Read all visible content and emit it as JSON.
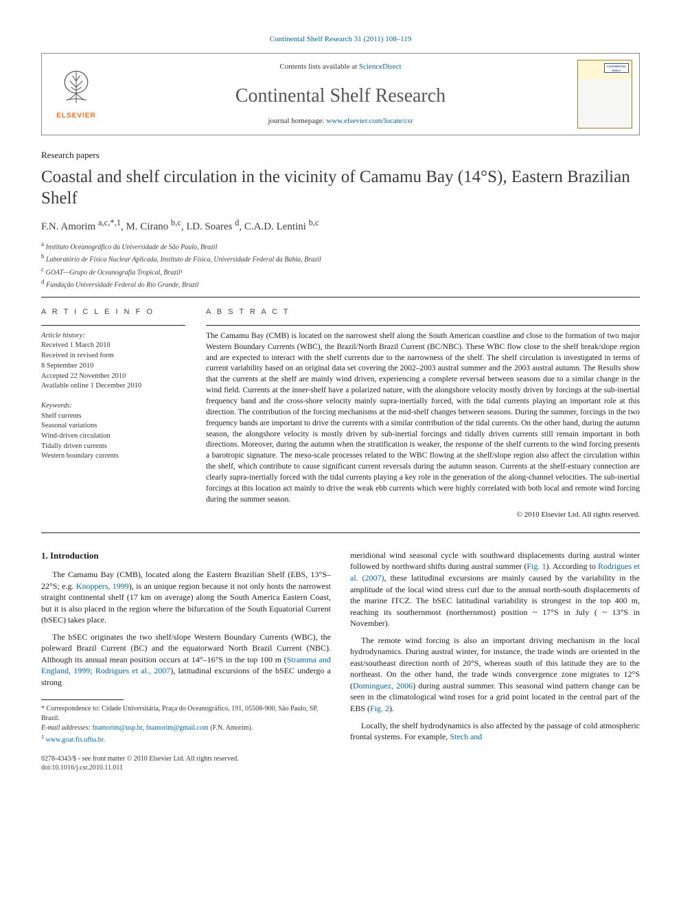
{
  "citation": "Continental Shelf Research 31 (2011) 108–119",
  "header": {
    "elsevier_label": "ELSEVIER",
    "sciencedirect_prefix": "Contents lists available at ",
    "sciencedirect_link": "ScienceDirect",
    "journal_name": "Continental Shelf Research",
    "homepage_prefix": "journal homepage: ",
    "homepage_link": "www.elsevier.com/locate/csr",
    "cover_badge": "CONTINENTAL SHELF RESEARCH"
  },
  "section_label": "Research papers",
  "title": "Coastal and shelf circulation in the vicinity of Camamu Bay (14°S), Eastern Brazilian Shelf",
  "authors_html": "F.N. Amorim <sup>a,c,*,1</sup>, M. Cirano <sup>b,c</sup>, I.D. Soares <sup>d</sup>, C.A.D. Lentini <sup>b,c</sup>",
  "affiliations": [
    {
      "sup": "a",
      "text": "Instituto Oceanográfico da Universidade de São Paulo, Brazil"
    },
    {
      "sup": "b",
      "text": "Laboratório de Física Nuclear Aplicada, Instituto de Física, Universidade Federal da Bahia, Brazil"
    },
    {
      "sup": "c",
      "text": "GOAT—Grupo de Oceanografia Tropical, Brazil¹"
    },
    {
      "sup": "d",
      "text": "Fundação Universidade Federal do Rio Grande, Brazil"
    }
  ],
  "article_info": {
    "heading": "A R T I C L E   I N F O",
    "history_label": "Article history:",
    "received": "Received 1 March 2010",
    "revised1": "Received in revised form",
    "revised2": "8 September 2010",
    "accepted": "Accepted 22 November 2010",
    "online": "Available online 1 December 2010",
    "keywords_label": "Keywords:",
    "keywords": [
      "Shelf currents",
      "Seasonal variations",
      "Wind-driven circulation",
      "Tidally driven currents",
      "Western boundary currents"
    ]
  },
  "abstract": {
    "heading": "A B S T R A C T",
    "text": "The Camamu Bay (CMB) is located on the narrowest shelf along the South American coastline and close to the formation of two major Western Boundary Currents (WBC), the Brazil/North Brazil Current (BC/NBC). These WBC flow close to the shelf break/slope region and are expected to interact with the shelf currents due to the narrowness of the shelf. The shelf circulation is investigated in terms of current variability based on an original data set covering the 2002–2003 austral summer and the 2003 austral autumn. The Results show that the currents at the shelf are mainly wind driven, experiencing a complete reversal between seasons due to a similar change in the wind field. Currents at the inner-shelf have a polarized nature, with the alongshore velocity mostly driven by forcings at the sub-inertial frequency band and the cross-shore velocity mainly supra-inertially forced, with the tidal currents playing an important role at this direction. The contribution of the forcing mechanisms at the mid-shelf changes between seasons. During the summer, forcings in the two frequency bands are important to drive the currents with a similar contribution of the tidal currents. On the other hand, during the autumn season, the alongshore velocity is mostly driven by sub-inertial forcings and tidally driven currents still remain important in both directions. Moreover, during the autumn when the stratification is weaker, the response of the shelf currents to the wind forcing presents a barotropic signature. The meso-scale processes related to the WBC flowing at the shelf/slope region also affect the circulation within the shelf, which contribute to cause significant current reversals during the autumn season. Currents at the shelf-estuary connection are clearly supra-inertially forced with the tidal currents playing a key role in the generation of the along-channel velocities. The sub-inertial forcings at this location act mainly to drive the weak ebb currents which were highly correlated with both local and remote wind forcing during the summer season.",
    "copyright": "© 2010 Elsevier Ltd. All rights reserved."
  },
  "body": {
    "section_heading": "1.  Introduction",
    "col1_p1_a": "The Camamu Bay (CMB), located along the Eastern Brazilian Shelf (EBS, 13°S–22°S; e.g. ",
    "col1_p1_ref1": "Knoppers, 1999",
    "col1_p1_b": "), is an unique region because it not only hosts the narrowest straight continental shelf (17 km on average) along the South America Eastern Coast, but it is also placed in the region where the bifurcation of the South Equatorial Current (bSEC) takes place.",
    "col1_p2_a": "The bSEC originates the two shelf/slope Western Boundary Currents (WBC), the poleward Brazil Current (BC) and the equatorward North Brazil Current (NBC). Although its annual mean position occurs at 14°–16°S in the top 100 m (",
    "col1_p2_ref1": "Stramma and England, 1999; Rodrigues et al., 2007",
    "col1_p2_b": "), latitudinal excursions of the bSEC undergo a strong",
    "col2_p1_a": "meridional wind seasonal cycle with southward displacements during austral winter followed by northward shifts during austral summer (",
    "col2_p1_ref1": "Fig. 1",
    "col2_p1_b": "). According to ",
    "col2_p1_ref2": "Rodrigues et al. (2007)",
    "col2_p1_c": ", these latitudinal excursions are mainly caused by the variability in the amplitude of the local wind stress curl due to the annual north-south displacements of the marine ITCZ. The bSEC latitudinal variability is strongest in the top 400 m, reaching its southernmost (northernmost) position ~ 17°S in July ( ~ 13°S in November).",
    "col2_p2_a": "The remote wind forcing is also an important driving mechanism in the local hydrodynamics. During austral winter, for instance, the trade winds are oriented in the east/southeast direction north of 20°S, whereas south of this latitude they are to the northeast. On the other hand, the trade winds convergence zone migrates to 12°S (",
    "col2_p2_ref1": "Dominguez, 2006",
    "col2_p2_b": ") during austral summer. This seasonal wind pattern change can be seen in the climatological wind roses for a grid point located in the central part of the EBS (",
    "col2_p2_ref2": "Fig. 2",
    "col2_p2_c": ").",
    "col2_p3_a": "Locally, the shelf hydrodynamics is also affected by the passage of cold atmospheric frontal systems. For example, ",
    "col2_p3_ref1": "Stech and"
  },
  "footnotes": {
    "corr_label": "* Correspondence to: Cidade Universitária, Praça do Oceanográfico, 191, 05508-900, São Paulo, SP, Brazil.",
    "email_label": "E-mail addresses:",
    "email1": "fnamorim@usp.br",
    "email_sep": ", ",
    "email2": "fnamorim@gmail.com",
    "email_name": " (F.N. Amorim).",
    "url_sup": "1",
    "url": "www.goat.fis.ufba.br",
    "url_period": "."
  },
  "footer": {
    "line1": "0278-4343/$ - see front matter © 2010 Elsevier Ltd. All rights reserved.",
    "line2": "doi:10.1016/j.csr.2010.11.011"
  },
  "colors": {
    "link": "#0066a4",
    "elsevier_orange": "#ff6a13",
    "rule": "#222222",
    "text": "#1a1a1a",
    "muted": "#565656"
  }
}
